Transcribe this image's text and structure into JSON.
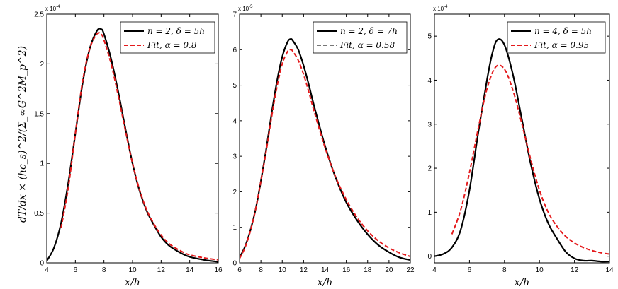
{
  "ylabel": "dT/dx × (hc_s)^2/(Σ_∞G^2M_p^2)",
  "chart_data": [
    {
      "type": "line",
      "xlabel": "x/h",
      "xlim": [
        4,
        16
      ],
      "ylim": [
        0,
        2.5
      ],
      "xticks": [
        "4",
        "6",
        "8",
        "10",
        "12",
        "14",
        "16"
      ],
      "yticks": [
        "0",
        "0.5",
        "1",
        "1.5",
        "2",
        "2.5"
      ],
      "exponent_label": "x 10^-4",
      "legend_position": "top-right",
      "series": [
        {
          "name": "n = 2, δ = 5h",
          "style": "solid",
          "color": "#000000",
          "x": [
            4,
            4.5,
            5,
            5.5,
            6,
            6.5,
            7,
            7.5,
            7.8,
            8,
            8.5,
            9,
            9.5,
            10,
            10.5,
            11,
            11.5,
            12,
            12.5,
            13,
            13.5,
            14,
            15,
            16
          ],
          "y": [
            0.02,
            0.15,
            0.4,
            0.8,
            1.3,
            1.8,
            2.15,
            2.33,
            2.35,
            2.3,
            2.05,
            1.72,
            1.35,
            1.0,
            0.72,
            0.52,
            0.38,
            0.26,
            0.18,
            0.13,
            0.09,
            0.06,
            0.03,
            0.01
          ]
        },
        {
          "name": "Fit, α = 0.8",
          "style": "dashed",
          "color": "#e41a1c",
          "x": [
            5,
            5.5,
            6,
            6.5,
            7,
            7.5,
            7.8,
            8,
            8.5,
            9,
            9.5,
            10,
            10.5,
            11,
            11.5,
            12,
            12.5,
            13,
            13.5,
            14,
            15,
            16
          ],
          "y": [
            0.35,
            0.75,
            1.3,
            1.82,
            2.15,
            2.3,
            2.3,
            2.24,
            2.0,
            1.68,
            1.33,
            1.0,
            0.73,
            0.53,
            0.39,
            0.28,
            0.2,
            0.15,
            0.11,
            0.08,
            0.05,
            0.03
          ]
        }
      ]
    },
    {
      "type": "line",
      "xlabel": "x/h",
      "xlim": [
        6,
        22
      ],
      "ylim": [
        0,
        7
      ],
      "xticks": [
        "6",
        "8",
        "10",
        "12",
        "14",
        "16",
        "18",
        "20",
        "22"
      ],
      "yticks": [
        "0",
        "1",
        "2",
        "3",
        "4",
        "5",
        "6",
        "7"
      ],
      "exponent_label": "x 10^-5",
      "legend_position": "top-right",
      "series": [
        {
          "name": "n = 2, δ = 7h",
          "style": "solid",
          "color": "#000000",
          "x": [
            6,
            6.5,
            7,
            7.5,
            8,
            8.5,
            9,
            9.5,
            10,
            10.5,
            10.8,
            11,
            11.5,
            12,
            12.5,
            13,
            14,
            15,
            16,
            17,
            18,
            19,
            20,
            21,
            22
          ],
          "y": [
            0.15,
            0.45,
            0.9,
            1.5,
            2.3,
            3.2,
            4.2,
            5.1,
            5.8,
            6.22,
            6.3,
            6.25,
            6.0,
            5.55,
            5.0,
            4.4,
            3.3,
            2.4,
            1.7,
            1.2,
            0.8,
            0.5,
            0.3,
            0.15,
            0.08
          ]
        },
        {
          "name": "Fit, α = 0.58",
          "style": "dashed",
          "color": "#e41a1c",
          "x": [
            6,
            6.5,
            7,
            7.5,
            8,
            8.5,
            9,
            9.5,
            10,
            10.5,
            10.8,
            11,
            11.5,
            12,
            12.5,
            13,
            14,
            15,
            16,
            17,
            18,
            19,
            20,
            21,
            22
          ],
          "y": [
            0.12,
            0.42,
            0.88,
            1.5,
            2.3,
            3.15,
            4.1,
            4.95,
            5.6,
            5.95,
            6.0,
            5.95,
            5.7,
            5.3,
            4.8,
            4.25,
            3.25,
            2.42,
            1.78,
            1.28,
            0.9,
            0.62,
            0.42,
            0.28,
            0.18
          ]
        }
      ]
    },
    {
      "type": "line",
      "xlabel": "x/h",
      "xlim": [
        4,
        14
      ],
      "ylim": [
        -0.15,
        5.5
      ],
      "xticks": [
        "4",
        "6",
        "8",
        "10",
        "12",
        "14"
      ],
      "yticks": [
        "0",
        "1",
        "2",
        "3",
        "4",
        "5"
      ],
      "exponent_label": "x 10^-4",
      "legend_position": "top-right",
      "series": [
        {
          "name": "n = 4, δ = 5h",
          "style": "solid",
          "color": "#000000",
          "x": [
            4,
            4.5,
            5,
            5.5,
            6,
            6.5,
            7,
            7.3,
            7.6,
            8,
            8.5,
            9,
            9.5,
            10,
            10.5,
            11,
            11.5,
            12,
            12.5,
            13,
            13.5,
            14
          ],
          "y": [
            0.0,
            0.05,
            0.2,
            0.6,
            1.5,
            2.8,
            4.0,
            4.6,
            4.92,
            4.8,
            4.1,
            3.1,
            2.1,
            1.3,
            0.75,
            0.4,
            0.1,
            -0.05,
            -0.1,
            -0.1,
            -0.12,
            -0.12
          ]
        },
        {
          "name": "Fit, α = 0.95",
          "style": "dashed",
          "color": "#e41a1c",
          "x": [
            5,
            5.5,
            6,
            6.5,
            7,
            7.5,
            8,
            8.5,
            9,
            9.5,
            10,
            10.5,
            11,
            11.5,
            12,
            12.5,
            13,
            13.5,
            14
          ],
          "y": [
            0.5,
            1.05,
            1.9,
            2.9,
            3.8,
            4.3,
            4.25,
            3.75,
            3.0,
            2.2,
            1.5,
            1.0,
            0.68,
            0.45,
            0.3,
            0.2,
            0.13,
            0.08,
            0.05
          ]
        }
      ]
    }
  ]
}
